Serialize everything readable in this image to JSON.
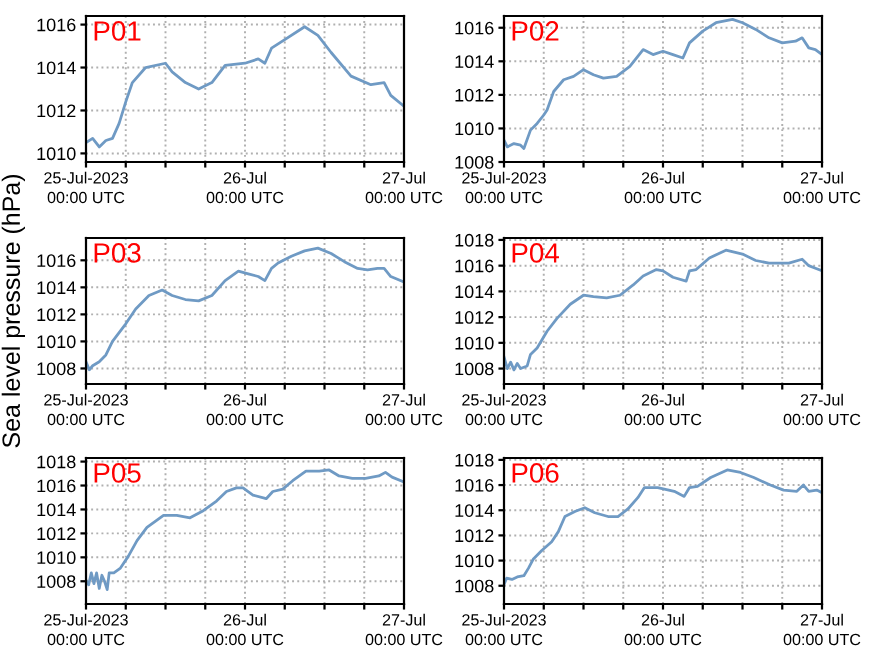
{
  "chart_data": [
    {
      "type": "line",
      "title": "P01",
      "grid": true,
      "xlim": [
        "2023-07-25T00:00",
        "2023-07-27T00:00"
      ],
      "xticks": [
        {
          "value": "2023-07-25T00:00",
          "label": "25-Jul-2023\n00:00 UTC"
        },
        {
          "value": "2023-07-25T06:00",
          "label": null
        },
        {
          "value": "2023-07-25T12:00",
          "label": null
        },
        {
          "value": "2023-07-25T18:00",
          "label": null
        },
        {
          "value": "2023-07-26T00:00",
          "label": "26-Jul\n00:00 UTC"
        },
        {
          "value": "2023-07-26T06:00",
          "label": null
        },
        {
          "value": "2023-07-26T12:00",
          "label": null
        },
        {
          "value": "2023-07-26T18:00",
          "label": null
        },
        {
          "value": "2023-07-27T00:00",
          "label": "27-Jul\n00:00 UTC"
        }
      ],
      "ylim": [
        1009.6,
        1016.4
      ],
      "yticks": [
        1010,
        1012,
        1014,
        1016
      ],
      "series": [
        {
          "color": "#6f9ac4",
          "x": [
            "2023-07-25T00:00",
            "2023-07-25T01:00",
            "2023-07-25T02:00",
            "2023-07-25T03:00",
            "2023-07-25T04:00",
            "2023-07-25T05:00",
            "2023-07-25T06:00",
            "2023-07-25T07:00",
            "2023-07-25T09:00",
            "2023-07-25T12:00",
            "2023-07-25T13:00",
            "2023-07-25T15:00",
            "2023-07-25T17:00",
            "2023-07-25T19:00",
            "2023-07-25T21:00",
            "2023-07-26T00:00",
            "2023-07-26T02:00",
            "2023-07-26T03:00",
            "2023-07-26T04:00",
            "2023-07-26T06:00",
            "2023-07-26T09:00",
            "2023-07-26T11:00",
            "2023-07-26T13:00",
            "2023-07-26T16:00",
            "2023-07-26T19:00",
            "2023-07-26T21:00",
            "2023-07-26T22:00",
            "2023-07-27T00:00"
          ],
          "values": [
            1010.5,
            1010.7,
            1010.3,
            1010.6,
            1010.7,
            1011.4,
            1012.4,
            1013.3,
            1014.0,
            1014.2,
            1013.8,
            1013.3,
            1013.0,
            1013.3,
            1014.1,
            1014.2,
            1014.4,
            1014.2,
            1014.9,
            1015.3,
            1015.9,
            1015.5,
            1014.7,
            1013.6,
            1013.2,
            1013.3,
            1012.7,
            1012.2
          ]
        }
      ]
    },
    {
      "type": "line",
      "title": "P02",
      "grid": true,
      "xlim": [
        "2023-07-25T00:00",
        "2023-07-27T00:00"
      ],
      "xticks": [
        {
          "value": "2023-07-25T00:00",
          "label": "25-Jul-2023\n00:00 UTC"
        },
        {
          "value": "2023-07-25T06:00",
          "label": null
        },
        {
          "value": "2023-07-25T12:00",
          "label": null
        },
        {
          "value": "2023-07-25T18:00",
          "label": null
        },
        {
          "value": "2023-07-26T00:00",
          "label": "26-Jul\n00:00 UTC"
        },
        {
          "value": "2023-07-26T06:00",
          "label": null
        },
        {
          "value": "2023-07-26T12:00",
          "label": null
        },
        {
          "value": "2023-07-26T18:00",
          "label": null
        },
        {
          "value": "2023-07-27T00:00",
          "label": "27-Jul\n00:00 UTC"
        }
      ],
      "ylim": [
        1008,
        1016.7
      ],
      "yticks": [
        1008,
        1010,
        1012,
        1014,
        1016
      ],
      "series": [
        {
          "color": "#6f9ac4",
          "x": [
            "2023-07-25T00:00",
            "2023-07-25T00:30",
            "2023-07-25T01:30",
            "2023-07-25T02:30",
            "2023-07-25T03:00",
            "2023-07-25T04:00",
            "2023-07-25T05:00",
            "2023-07-25T06:00",
            "2023-07-25T06:30",
            "2023-07-25T07:30",
            "2023-07-25T09:00",
            "2023-07-25T10:30",
            "2023-07-25T12:00",
            "2023-07-25T13:30",
            "2023-07-25T15:00",
            "2023-07-25T17:00",
            "2023-07-25T19:00",
            "2023-07-25T21:00",
            "2023-07-25T22:30",
            "2023-07-26T00:00",
            "2023-07-26T01:30",
            "2023-07-26T03:00",
            "2023-07-26T04:00",
            "2023-07-26T06:00",
            "2023-07-26T08:00",
            "2023-07-26T10:30",
            "2023-07-26T12:00",
            "2023-07-26T14:00",
            "2023-07-26T16:00",
            "2023-07-26T18:00",
            "2023-07-26T20:00",
            "2023-07-26T21:00",
            "2023-07-26T22:00",
            "2023-07-26T23:00",
            "2023-07-27T00:00"
          ],
          "values": [
            1009.3,
            1008.9,
            1009.1,
            1009.0,
            1008.8,
            1009.9,
            1010.3,
            1010.8,
            1011.1,
            1012.2,
            1012.9,
            1013.1,
            1013.5,
            1013.2,
            1013.0,
            1013.1,
            1013.7,
            1014.7,
            1014.4,
            1014.6,
            1014.4,
            1014.2,
            1015.1,
            1015.8,
            1016.3,
            1016.5,
            1016.3,
            1015.9,
            1015.4,
            1015.1,
            1015.2,
            1015.4,
            1014.8,
            1014.7,
            1014.4
          ]
        }
      ]
    },
    {
      "type": "line",
      "title": "P03",
      "ylabel": "Sea level pressure (hPa)",
      "grid": true,
      "xlim": [
        "2023-07-25T00:00",
        "2023-07-27T00:00"
      ],
      "xticks": [
        {
          "value": "2023-07-25T00:00",
          "label": "25-Jul-2023\n00:00 UTC"
        },
        {
          "value": "2023-07-25T06:00",
          "label": null
        },
        {
          "value": "2023-07-25T12:00",
          "label": null
        },
        {
          "value": "2023-07-25T18:00",
          "label": null
        },
        {
          "value": "2023-07-26T00:00",
          "label": "26-Jul\n00:00 UTC"
        },
        {
          "value": "2023-07-26T06:00",
          "label": null
        },
        {
          "value": "2023-07-26T12:00",
          "label": null
        },
        {
          "value": "2023-07-26T18:00",
          "label": null
        },
        {
          "value": "2023-07-27T00:00",
          "label": "27-Jul\n00:00 UTC"
        }
      ],
      "ylim": [
        1006.85,
        1017.65
      ],
      "yticks": [
        1008,
        1010,
        1012,
        1014,
        1016
      ],
      "series": [
        {
          "color": "#6f9ac4",
          "x": [
            "2023-07-25T00:00",
            "2023-07-25T00:30",
            "2023-07-25T01:00",
            "2023-07-25T02:00",
            "2023-07-25T03:00",
            "2023-07-25T04:00",
            "2023-07-25T06:00",
            "2023-07-25T07:30",
            "2023-07-25T09:30",
            "2023-07-25T11:30",
            "2023-07-25T13:00",
            "2023-07-25T15:00",
            "2023-07-25T17:00",
            "2023-07-25T19:00",
            "2023-07-25T21:00",
            "2023-07-25T23:00",
            "2023-07-26T00:30",
            "2023-07-26T02:00",
            "2023-07-26T03:00",
            "2023-07-26T04:00",
            "2023-07-26T05:00",
            "2023-07-26T07:00",
            "2023-07-26T09:00",
            "2023-07-26T11:00",
            "2023-07-26T13:00",
            "2023-07-26T15:00",
            "2023-07-26T17:00",
            "2023-07-26T18:30",
            "2023-07-26T20:00",
            "2023-07-26T21:00",
            "2023-07-26T22:00",
            "2023-07-27T00:00"
          ],
          "values": [
            1008.5,
            1007.9,
            1008.2,
            1008.5,
            1009.0,
            1010.0,
            1011.3,
            1012.4,
            1013.4,
            1013.8,
            1013.4,
            1013.1,
            1013.0,
            1013.4,
            1014.5,
            1015.2,
            1015.0,
            1014.8,
            1014.5,
            1015.4,
            1015.8,
            1016.3,
            1016.7,
            1016.9,
            1016.5,
            1015.9,
            1015.4,
            1015.3,
            1015.4,
            1015.4,
            1014.8,
            1014.4
          ]
        }
      ]
    },
    {
      "type": "line",
      "title": "P04",
      "grid": true,
      "xlim": [
        "2023-07-25T00:00",
        "2023-07-27T00:00"
      ],
      "xticks": [
        {
          "value": "2023-07-25T00:00",
          "label": "25-Jul-2023\n00:00 UTC"
        },
        {
          "value": "2023-07-25T06:00",
          "label": null
        },
        {
          "value": "2023-07-25T12:00",
          "label": null
        },
        {
          "value": "2023-07-25T18:00",
          "label": null
        },
        {
          "value": "2023-07-26T00:00",
          "label": "26-Jul\n00:00 UTC"
        },
        {
          "value": "2023-07-26T06:00",
          "label": null
        },
        {
          "value": "2023-07-26T12:00",
          "label": null
        },
        {
          "value": "2023-07-26T18:00",
          "label": null
        },
        {
          "value": "2023-07-27T00:00",
          "label": "27-Jul\n00:00 UTC"
        }
      ],
      "ylim": [
        1006.8,
        1018.15
      ],
      "yticks": [
        1008,
        1010,
        1012,
        1014,
        1016,
        1018
      ],
      "series": [
        {
          "color": "#6f9ac4",
          "x": [
            "2023-07-25T00:00",
            "2023-07-25T00:30",
            "2023-07-25T01:00",
            "2023-07-25T01:30",
            "2023-07-25T02:00",
            "2023-07-25T02:30",
            "2023-07-25T03:30",
            "2023-07-25T04:00",
            "2023-07-25T05:00",
            "2023-07-25T06:30",
            "2023-07-25T08:00",
            "2023-07-25T10:00",
            "2023-07-25T12:00",
            "2023-07-25T13:30",
            "2023-07-25T15:30",
            "2023-07-25T17:30",
            "2023-07-25T19:30",
            "2023-07-25T21:00",
            "2023-07-25T23:00",
            "2023-07-26T00:00",
            "2023-07-26T01:30",
            "2023-07-26T03:30",
            "2023-07-26T04:00",
            "2023-07-26T05:00",
            "2023-07-26T07:00",
            "2023-07-26T09:30",
            "2023-07-26T12:00",
            "2023-07-26T14:00",
            "2023-07-26T16:00",
            "2023-07-26T19:00",
            "2023-07-26T21:00",
            "2023-07-26T22:00",
            "2023-07-26T23:00",
            "2023-07-27T00:00"
          ],
          "values": [
            1008.9,
            1008.0,
            1008.5,
            1007.9,
            1008.4,
            1008.0,
            1008.2,
            1009.1,
            1009.6,
            1010.9,
            1011.9,
            1013.0,
            1013.7,
            1013.6,
            1013.5,
            1013.7,
            1014.5,
            1015.2,
            1015.7,
            1015.6,
            1015.1,
            1014.8,
            1015.6,
            1015.7,
            1016.6,
            1017.2,
            1016.9,
            1016.4,
            1016.2,
            1016.2,
            1016.5,
            1016.0,
            1015.8,
            1015.6
          ]
        }
      ]
    },
    {
      "type": "line",
      "title": "P05",
      "grid": true,
      "xlim": [
        "2023-07-25T00:00",
        "2023-07-27T00:00"
      ],
      "xticks": [
        {
          "value": "2023-07-25T00:00",
          "label": "25-Jul-2023\n00:00 UTC"
        },
        {
          "value": "2023-07-25T06:00",
          "label": null
        },
        {
          "value": "2023-07-25T12:00",
          "label": null
        },
        {
          "value": "2023-07-25T18:00",
          "label": null
        },
        {
          "value": "2023-07-26T00:00",
          "label": "26-Jul\n00:00 UTC"
        },
        {
          "value": "2023-07-26T06:00",
          "label": null
        },
        {
          "value": "2023-07-26T12:00",
          "label": null
        },
        {
          "value": "2023-07-26T18:00",
          "label": null
        },
        {
          "value": "2023-07-27T00:00",
          "label": "27-Jul\n00:00 UTC"
        }
      ],
      "ylim": [
        1006.1,
        1018.3
      ],
      "yticks": [
        1008,
        1010,
        1012,
        1014,
        1016,
        1018
      ],
      "series": [
        {
          "color": "#6f9ac4",
          "x": [
            "2023-07-25T00:00",
            "2023-07-25T00:24",
            "2023-07-25T00:48",
            "2023-07-25T01:12",
            "2023-07-25T01:36",
            "2023-07-25T02:00",
            "2023-07-25T02:24",
            "2023-07-25T02:48",
            "2023-07-25T03:12",
            "2023-07-25T03:30",
            "2023-07-25T04:12",
            "2023-07-25T05:12",
            "2023-07-25T06:24",
            "2023-07-25T07:42",
            "2023-07-25T09:12",
            "2023-07-25T11:42",
            "2023-07-25T13:42",
            "2023-07-25T15:42",
            "2023-07-25T17:42",
            "2023-07-25T19:42",
            "2023-07-25T21:12",
            "2023-07-25T22:42",
            "2023-07-25T23:42",
            "2023-07-26T01:12",
            "2023-07-26T03:12",
            "2023-07-26T04:12",
            "2023-07-26T05:42",
            "2023-07-26T07:12",
            "2023-07-26T09:12",
            "2023-07-26T11:12",
            "2023-07-26T12:42",
            "2023-07-26T14:12",
            "2023-07-26T16:12",
            "2023-07-26T18:12",
            "2023-07-26T20:12",
            "2023-07-26T21:12",
            "2023-07-26T22:12",
            "2023-07-27T00:00"
          ],
          "values": [
            1008.1,
            1007.7,
            1008.7,
            1007.8,
            1008.7,
            1007.4,
            1008.5,
            1008.0,
            1007.3,
            1008.7,
            1008.7,
            1009.1,
            1010.1,
            1011.4,
            1012.5,
            1013.5,
            1013.5,
            1013.3,
            1013.9,
            1014.7,
            1015.5,
            1015.8,
            1015.8,
            1015.2,
            1014.9,
            1015.5,
            1015.7,
            1016.4,
            1017.2,
            1017.2,
            1017.3,
            1016.8,
            1016.6,
            1016.6,
            1016.8,
            1017.1,
            1016.7,
            1016.3
          ]
        }
      ]
    },
    {
      "type": "line",
      "title": "P06",
      "grid": true,
      "xlim": [
        "2023-07-25T00:00",
        "2023-07-27T00:00"
      ],
      "xticks": [
        {
          "value": "2023-07-25T00:00",
          "label": "25-Jul-2023\n00:00 UTC"
        },
        {
          "value": "2023-07-25T06:00",
          "label": null
        },
        {
          "value": "2023-07-25T12:00",
          "label": null
        },
        {
          "value": "2023-07-25T18:00",
          "label": null
        },
        {
          "value": "2023-07-26T00:00",
          "label": "26-Jul\n00:00 UTC"
        },
        {
          "value": "2023-07-26T06:00",
          "label": null
        },
        {
          "value": "2023-07-26T12:00",
          "label": null
        },
        {
          "value": "2023-07-26T18:00",
          "label": null
        },
        {
          "value": "2023-07-27T00:00",
          "label": "27-Jul\n00:00 UTC"
        }
      ],
      "ylim": [
        1006.55,
        1018.15
      ],
      "yticks": [
        1008,
        1010,
        1012,
        1014,
        1016,
        1018
      ],
      "series": [
        {
          "color": "#6f9ac4",
          "x": [
            "2023-07-25T00:00",
            "2023-07-25T00:24",
            "2023-07-25T01:12",
            "2023-07-25T02:00",
            "2023-07-25T03:00",
            "2023-07-25T03:42",
            "2023-07-25T04:24",
            "2023-07-25T05:42",
            "2023-07-25T07:12",
            "2023-07-25T08:12",
            "2023-07-25T09:12",
            "2023-07-25T10:42",
            "2023-07-25T12:12",
            "2023-07-25T13:42",
            "2023-07-25T15:42",
            "2023-07-25T17:12",
            "2023-07-25T18:42",
            "2023-07-25T20:12",
            "2023-07-25T21:12",
            "2023-07-25T23:12",
            "2023-07-26T01:42",
            "2023-07-26T03:12",
            "2023-07-26T04:00",
            "2023-07-26T05:12",
            "2023-07-26T07:12",
            "2023-07-26T09:42",
            "2023-07-26T11:42",
            "2023-07-26T13:42",
            "2023-07-26T16:12",
            "2023-07-26T18:12",
            "2023-07-26T20:12",
            "2023-07-26T21:12",
            "2023-07-26T22:00",
            "2023-07-26T23:12",
            "2023-07-27T00:00"
          ],
          "values": [
            1008.1,
            1008.6,
            1008.5,
            1008.7,
            1008.8,
            1009.4,
            1010.1,
            1010.8,
            1011.5,
            1012.3,
            1013.5,
            1013.9,
            1014.2,
            1013.8,
            1013.5,
            1013.5,
            1014.1,
            1015.0,
            1015.8,
            1015.8,
            1015.5,
            1015.1,
            1015.8,
            1015.9,
            1016.6,
            1017.2,
            1017.0,
            1016.6,
            1016.0,
            1015.6,
            1015.5,
            1016.0,
            1015.5,
            1015.6,
            1015.4
          ]
        }
      ]
    }
  ]
}
